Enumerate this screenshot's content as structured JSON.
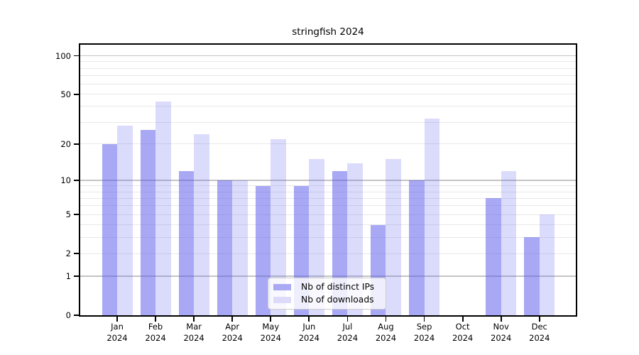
{
  "title": "stringfish 2024",
  "chart_data": {
    "type": "bar",
    "title": "stringfish 2024",
    "categories": [
      "Jan 2024",
      "Feb 2024",
      "Mar 2024",
      "Apr 2024",
      "May 2024",
      "Jun 2024",
      "Jul 2024",
      "Aug 2024",
      "Sep 2024",
      "Oct 2024",
      "Nov 2024",
      "Dec 2024"
    ],
    "series": [
      {
        "name": "Nb of distinct IPs",
        "color": "rgba(84,84,235,0.51)",
        "legend_color": "#a9a9f4",
        "values": [
          20,
          26,
          12,
          10,
          9,
          9,
          12,
          4,
          10,
          0,
          7,
          3
        ]
      },
      {
        "name": "Nb of downloads",
        "color": "rgba(84,84,235,0.21)",
        "legend_color": "#dcdcfa",
        "values": [
          28,
          44,
          24,
          10,
          22,
          15,
          14,
          15,
          32,
          0,
          12,
          5
        ]
      }
    ],
    "xlabel": "",
    "ylabel": "",
    "yscale": "log1p",
    "ylim": [
      0,
      122
    ],
    "yticks": [
      0,
      1,
      2,
      5,
      10,
      20,
      50,
      100
    ],
    "yticks_minor": [
      3,
      4,
      6,
      7,
      8,
      9,
      30,
      40,
      60,
      70,
      80,
      90
    ],
    "yticks_emphasis": [
      1,
      10,
      100
    ],
    "grid": true,
    "legend_position": "lower center"
  },
  "colors": {
    "background": "#ffffff",
    "axis": "#000000",
    "text": "#000000",
    "grid_major": "#c4c4c4",
    "grid_minor": "#e8e8e8",
    "legend_border": "#cccccc",
    "legend_bg": "rgba(255,255,255,0.8)"
  }
}
